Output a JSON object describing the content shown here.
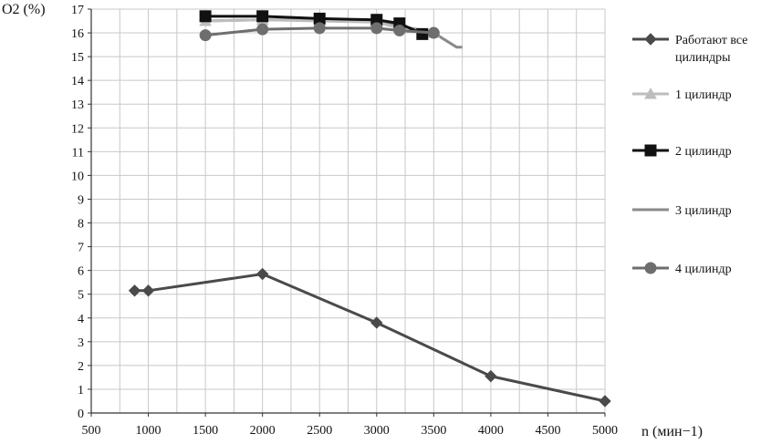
{
  "chart_data": {
    "type": "line",
    "title": "",
    "ylabel": "O2 (%)",
    "xlabel": "n (мин−1)",
    "xlim": [
      500,
      5000
    ],
    "ylim": [
      0,
      17
    ],
    "x_ticks": [
      "500",
      "1000",
      "1500",
      "2000",
      "2500",
      "3000",
      "3500",
      "4000",
      "4500",
      "5000"
    ],
    "y_ticks": [
      "0",
      "1",
      "2",
      "3",
      "4",
      "5",
      "6",
      "7",
      "8",
      "9",
      "10",
      "11",
      "12",
      "13",
      "14",
      "15",
      "16",
      "17"
    ],
    "grid": true,
    "legend_position": "right",
    "series": [
      {
        "name": "Работают все цилиндры",
        "color": "#4a4a4a",
        "marker": "diamond",
        "x": [
          880,
          1000,
          2000,
          3000,
          4000,
          5000
        ],
        "y": [
          5.15,
          5.15,
          5.85,
          3.8,
          1.55,
          0.5
        ]
      },
      {
        "name": "1 цилиндр",
        "color": "#bdbdbd",
        "marker": "triangle",
        "x": [
          1500,
          2000,
          2500,
          3000,
          3200,
          3500
        ],
        "y": [
          16.5,
          16.55,
          16.5,
          16.45,
          16.2,
          16.0
        ]
      },
      {
        "name": "2 цилиндр",
        "color": "#111111",
        "marker": "square",
        "x": [
          1500,
          2000,
          2500,
          3000,
          3200,
          3400
        ],
        "y": [
          16.7,
          16.7,
          16.6,
          16.55,
          16.4,
          15.95
        ]
      },
      {
        "name": "3 цилиндр",
        "color": "#8a8a8a",
        "marker": "none",
        "x": [
          1500,
          2000,
          2500,
          3000,
          3500,
          3700,
          3750
        ],
        "y": [
          16.5,
          16.55,
          16.55,
          16.5,
          16.0,
          15.4,
          15.4
        ]
      },
      {
        "name": "4 цилиндр",
        "color": "#6e6e6e",
        "marker": "circle",
        "x": [
          1500,
          2000,
          2500,
          3000,
          3200,
          3500
        ],
        "y": [
          15.9,
          16.15,
          16.2,
          16.2,
          16.1,
          16.0
        ]
      }
    ]
  }
}
